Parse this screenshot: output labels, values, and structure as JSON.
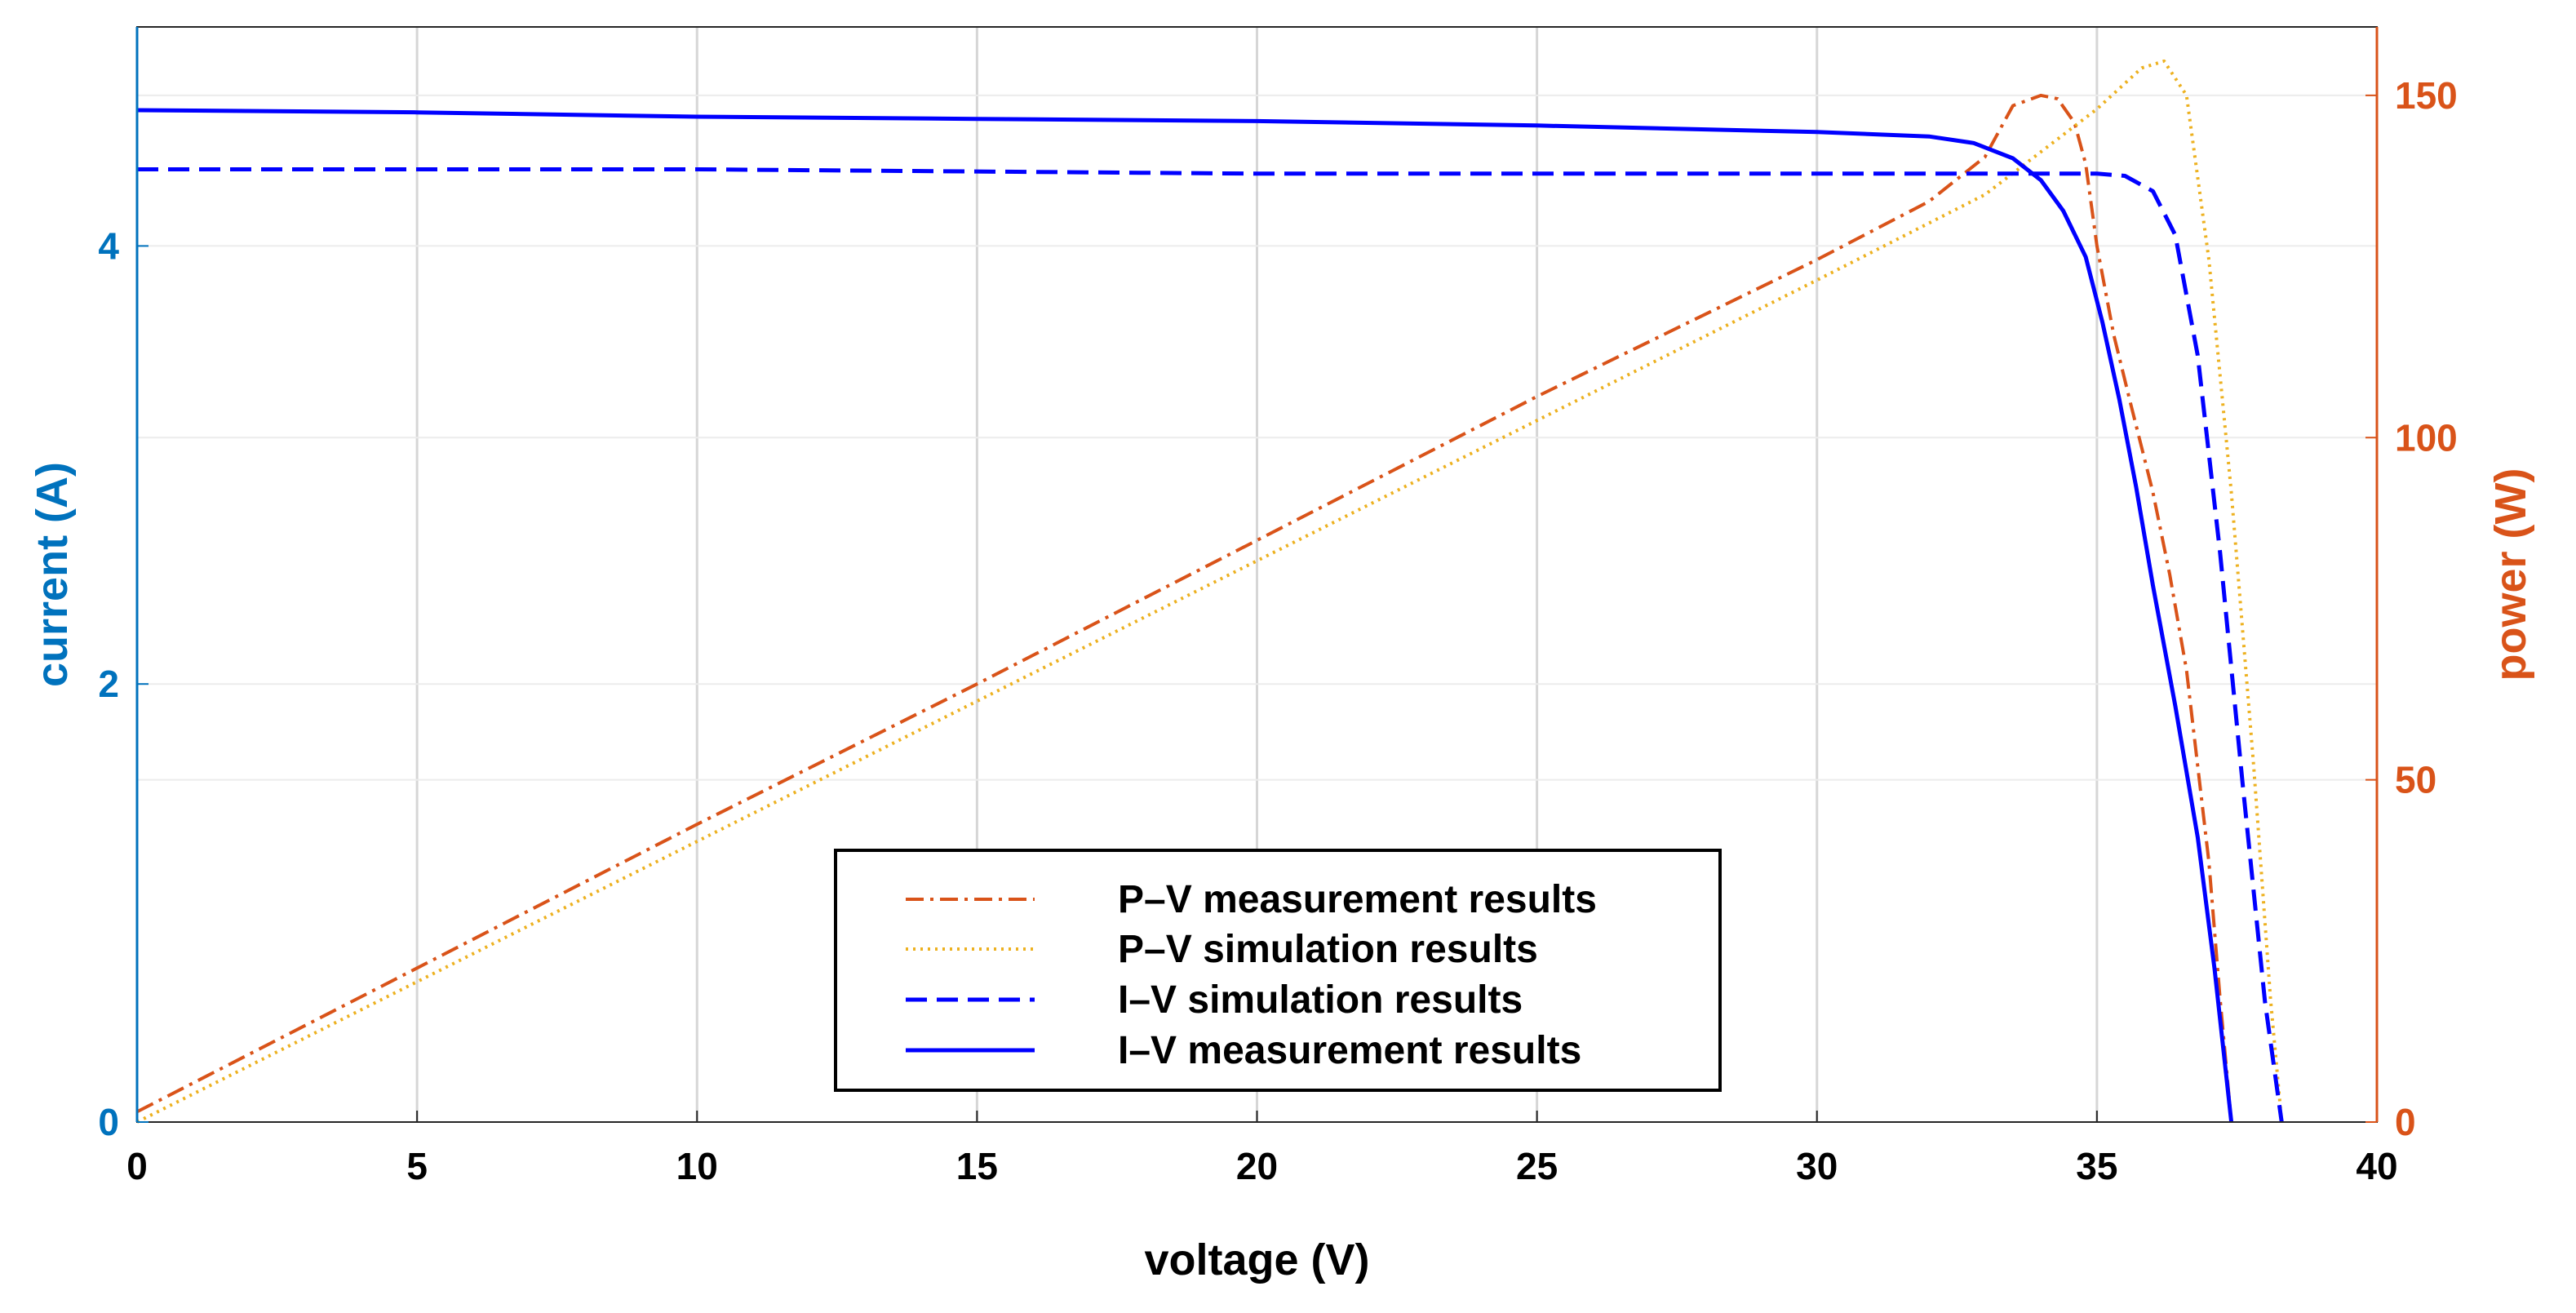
{
  "chart_data": {
    "type": "line",
    "title": "",
    "xlabel": "voltage (V)",
    "ylabel_left": "current (A)",
    "ylabel_right": "power (W)",
    "xlim": [
      0,
      40
    ],
    "ylim_left": [
      0,
      5
    ],
    "ylim_right": [
      0,
      160
    ],
    "x_ticks": [
      0,
      5,
      10,
      15,
      20,
      25,
      30,
      35,
      40
    ],
    "y_left_ticks": [
      0,
      2,
      4
    ],
    "y_right_ticks": [
      0,
      50,
      100,
      150
    ],
    "grid": true,
    "legend_position": "bottom-center",
    "colors": {
      "left_axis": "#0072BD",
      "right_axis": "#D95319",
      "pv_measurement": "#D95319",
      "pv_simulation": "#EDB120",
      "iv_simulation": "#0000FF",
      "iv_measurement": "#0000FF"
    },
    "series": [
      {
        "name": "P–V measurement results",
        "axis": "right",
        "style": "dashdot",
        "color": "#D95319",
        "x": [
          0,
          5,
          10,
          15,
          20,
          25,
          30,
          32,
          33,
          33.5,
          34,
          34.3,
          34.6,
          34.8,
          35,
          35.3,
          35.6,
          36,
          36.3,
          36.6,
          37,
          37.2,
          37.4
        ],
        "y": [
          1.5,
          22.5,
          43.5,
          64,
          85,
          106,
          126,
          134.5,
          141,
          148.5,
          150,
          149.5,
          146,
          140,
          128,
          115,
          105,
          92,
          80,
          66,
          38,
          18,
          0
        ]
      },
      {
        "name": "P–V simulation results",
        "axis": "right",
        "style": "dotted",
        "color": "#EDB120",
        "x": [
          0,
          5,
          10,
          15,
          20,
          25,
          30,
          33,
          35,
          35.8,
          36.2,
          36.6,
          37,
          37.4,
          37.8,
          38.1,
          38.3
        ],
        "y": [
          0,
          20.5,
          41,
          61.5,
          82,
          102.5,
          123,
          135.5,
          148,
          154,
          155,
          150,
          126,
          92,
          52,
          18,
          0
        ]
      },
      {
        "name": "I–V simulation results",
        "axis": "left",
        "style": "dashed",
        "color": "#0000FF",
        "x": [
          0,
          10,
          20,
          30,
          34,
          35,
          35.5,
          36,
          36.4,
          36.8,
          37.2,
          37.6,
          38,
          38.3
        ],
        "y": [
          4.35,
          4.35,
          4.33,
          4.33,
          4.33,
          4.33,
          4.32,
          4.25,
          4.05,
          3.5,
          2.6,
          1.55,
          0.55,
          0
        ]
      },
      {
        "name": "I–V measurement results",
        "axis": "left",
        "style": "solid",
        "color": "#0000FF",
        "x": [
          0,
          5,
          10,
          15,
          20,
          25,
          30,
          32,
          32.8,
          33.5,
          34,
          34.4,
          34.8,
          35.1,
          35.4,
          35.7,
          36,
          36.4,
          36.8,
          37.1,
          37.4
        ],
        "y": [
          4.62,
          4.61,
          4.59,
          4.58,
          4.57,
          4.55,
          4.52,
          4.5,
          4.47,
          4.4,
          4.3,
          4.16,
          3.95,
          3.65,
          3.3,
          2.9,
          2.45,
          1.9,
          1.3,
          0.7,
          0
        ]
      }
    ]
  }
}
